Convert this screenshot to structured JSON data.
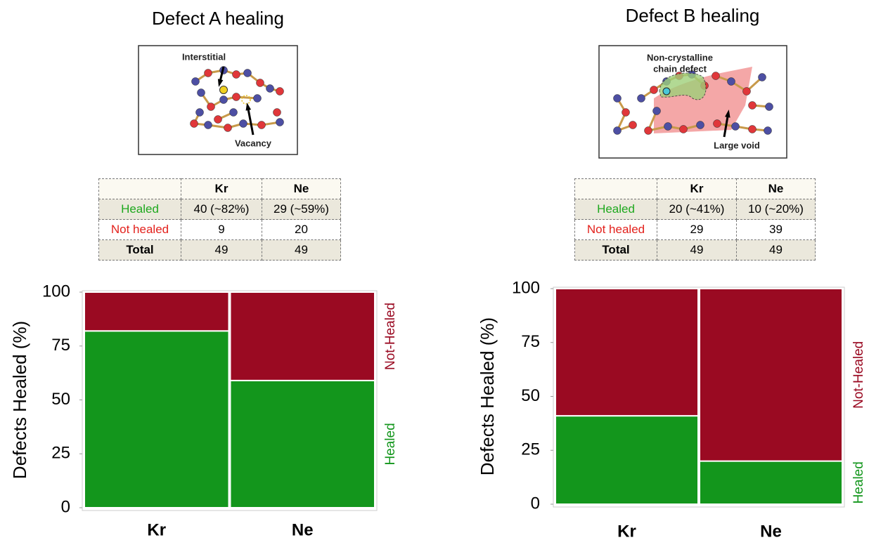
{
  "chart_data": [
    {
      "type": "bar",
      "stacked": true,
      "title": "Defect A healing",
      "illustration": {
        "labels": [
          [
            "Interstitial"
          ],
          [
            "Vacancy"
          ]
        ]
      },
      "table": {
        "columns": [
          "Kr",
          "Ne"
        ],
        "rows": [
          {
            "label": "Healed",
            "color": "#1ea81e",
            "cells": [
              "40  (~82%)",
              "29 (~59%)"
            ]
          },
          {
            "label": "Not healed",
            "color": "#e3211c",
            "cells": [
              9,
              20
            ]
          },
          {
            "label": "Total",
            "color": "#000000",
            "cells": [
              49,
              49
            ]
          }
        ]
      },
      "ylabel": "Defects Healed (%)",
      "categories": [
        "Kr",
        "Ne"
      ],
      "series": [
        {
          "name": "Healed",
          "color": "#13961c",
          "values": [
            82,
            59
          ]
        },
        {
          "name": "Not-Healed",
          "color": "#9a0a22",
          "values": [
            18,
            41
          ]
        }
      ],
      "ylim": [
        0,
        100
      ],
      "yticks": [
        0,
        25,
        50,
        75,
        100
      ]
    },
    {
      "type": "bar",
      "stacked": true,
      "title": "Defect B healing",
      "illustration": {
        "labels": [
          [
            "Non-crystalline",
            "chain defect"
          ],
          [
            "Large void"
          ]
        ]
      },
      "table": {
        "columns": [
          "Kr",
          "Ne"
        ],
        "rows": [
          {
            "label": "Healed",
            "color": "#1ea81e",
            "cells": [
              "20 (~41%)",
              "10 (~20%)"
            ]
          },
          {
            "label": "Not healed",
            "color": "#e3211c",
            "cells": [
              29,
              39
            ]
          },
          {
            "label": "Total",
            "color": "#000000",
            "cells": [
              49,
              49
            ]
          }
        ]
      },
      "ylabel": "Defects Healed (%)",
      "categories": [
        "Kr",
        "Ne"
      ],
      "series": [
        {
          "name": "Healed",
          "color": "#13961c",
          "values": [
            41,
            20
          ]
        },
        {
          "name": "Not-Healed",
          "color": "#9a0a22",
          "values": [
            59,
            80
          ]
        }
      ],
      "ylim": [
        0,
        100
      ],
      "yticks": [
        0,
        25,
        50,
        75,
        100
      ]
    }
  ]
}
